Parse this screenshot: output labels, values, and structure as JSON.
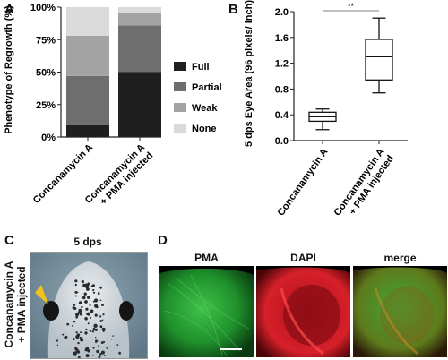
{
  "panels": {
    "A": "A",
    "B": "B",
    "C": "C",
    "D": "D"
  },
  "chart_data": [
    {
      "type": "bar",
      "stacked": true,
      "ylabel": "Phenotype of Regrowth (%)",
      "ylim": [
        0,
        100
      ],
      "yticks": [
        "0%",
        "25%",
        "50%",
        "75%",
        "100%"
      ],
      "categories": [
        "Concanamycin A",
        "Concanamycin A + PMA injected"
      ],
      "series": [
        {
          "name": "Full",
          "color": "#1f1f1f",
          "values": [
            9,
            50
          ]
        },
        {
          "name": "Partial",
          "color": "#6e6e6e",
          "values": [
            38,
            36
          ]
        },
        {
          "name": "Weak",
          "color": "#a3a3a3",
          "values": [
            31,
            10
          ]
        },
        {
          "name": "None",
          "color": "#dadada",
          "values": [
            22,
            4
          ]
        }
      ],
      "legend": "right"
    },
    {
      "type": "boxplot",
      "ylabel": "5 dps Eye Area (96 pixels/ inch)",
      "ylim": [
        0,
        2.0
      ],
      "yticks": [
        "0.0",
        "0.4",
        "0.8",
        "1.2",
        "1.6",
        "2.0"
      ],
      "categories": [
        "Concanamycin A",
        "Concanamycin A + PMA injected"
      ],
      "boxes": [
        {
          "min": 0.17,
          "q1": 0.3,
          "median": 0.37,
          "q3": 0.44,
          "max": 0.49
        },
        {
          "min": 0.74,
          "q1": 0.94,
          "median": 1.3,
          "q3": 1.57,
          "max": 1.9
        }
      ],
      "significance": "**"
    }
  ],
  "panelC": {
    "title": "5 dps",
    "row_label_line1": "Concanamycin A",
    "row_label_line2": "+ PMA injected"
  },
  "panelD": {
    "titles": [
      "PMA",
      "DAPI",
      "merge"
    ]
  }
}
